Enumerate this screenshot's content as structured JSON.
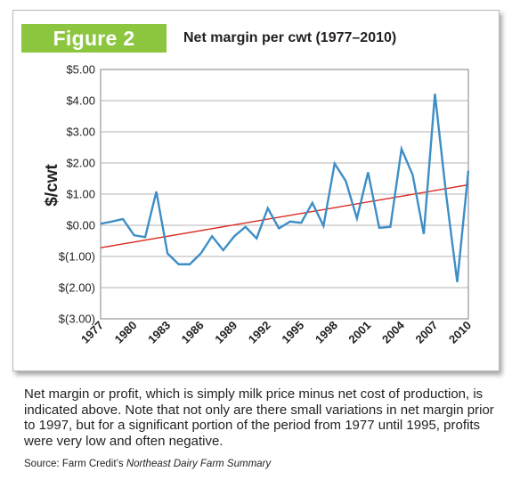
{
  "figure": {
    "label": "Figure 2",
    "title": "Net margin per cwt (1977–2010)",
    "badge_color": "#8cc63f"
  },
  "chart_data": {
    "type": "line",
    "title": "Net margin per cwt (1977–2010)",
    "xlabel": "",
    "ylabel": "$/cwt",
    "x": [
      1977,
      1978,
      1979,
      1980,
      1981,
      1982,
      1983,
      1984,
      1985,
      1986,
      1987,
      1988,
      1989,
      1990,
      1991,
      1992,
      1993,
      1994,
      1995,
      1996,
      1997,
      1998,
      1999,
      2000,
      2001,
      2002,
      2003,
      2004,
      2005,
      2006,
      2007,
      2008,
      2009,
      2010
    ],
    "series": [
      {
        "values": [
          0.05,
          0.12,
          0.2,
          -0.32,
          -0.38,
          1.08,
          -0.9,
          -1.25,
          -1.25,
          -0.9,
          -0.35,
          -0.8,
          -0.35,
          -0.05,
          -0.42,
          0.55,
          -0.1,
          0.12,
          0.08,
          0.72,
          -0.02,
          1.98,
          1.42,
          0.22,
          1.7,
          -0.08,
          -0.05,
          2.45,
          1.62,
          -0.28,
          4.22,
          1.0,
          -1.82,
          1.75
        ],
        "color": "#3d8ec6"
      }
    ],
    "trendline": {
      "start": [
        1977,
        -0.72
      ],
      "end": [
        2010,
        1.3
      ],
      "color": "#d7281f"
    },
    "ylim": [
      -3,
      5
    ],
    "xlim": [
      1977,
      2010
    ],
    "yticks": [
      5,
      4,
      3,
      2,
      1,
      0,
      -1,
      -2,
      -3
    ],
    "ytick_labels": [
      "$5.00",
      "$4.00",
      "$3.00",
      "$2.00",
      "$1.00",
      "$0.00",
      "$(1.00)",
      "$(2.00)",
      "$(3.00)"
    ],
    "xtick_labels": [
      "1977",
      "1980",
      "1983",
      "1986",
      "1989",
      "1992",
      "1995",
      "1998",
      "2001",
      "2004",
      "2007",
      "2010"
    ],
    "grid": true,
    "legend": "none"
  },
  "caption": {
    "text": "Net margin or profit, which is simply milk price minus net cost of production, is indicated above. Note that not only are there small variations in net margin prior to 1997, but for a significant portion of the period from 1977 until 1995, profits were very low and often negative.",
    "source_prefix": "Source: Farm Credit’s ",
    "source_title": "Northeast Dairy Farm Summary"
  }
}
